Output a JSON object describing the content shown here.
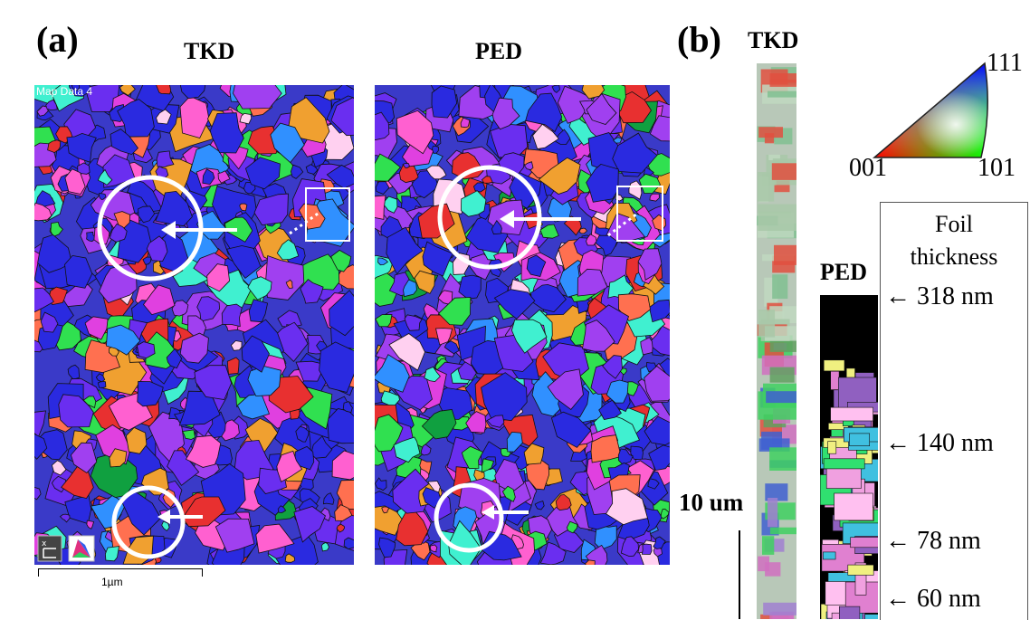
{
  "panel_a": {
    "label": "(a)",
    "tkd_title": "TKD",
    "ped_title": "PED",
    "map_data_label": "Map Data 4",
    "scale_label": "1µm"
  },
  "panel_b": {
    "label": "(b)",
    "tkd_title": "TKD",
    "ped_title": "PED",
    "scale_label": "10 um",
    "ipf": {
      "top": "111",
      "left": "001",
      "right": "101"
    },
    "foil": {
      "title_line1": "Foil",
      "title_line2": "thickness",
      "markers": [
        "318 nm",
        "140 nm",
        "78 nm",
        "60 nm"
      ]
    }
  },
  "colors": {
    "grain_palette": [
      "#2a2ae0",
      "#6a2ef0",
      "#a040f0",
      "#e040e0",
      "#ff60d0",
      "#e83030",
      "#ff7050",
      "#30e050",
      "#40f0d0",
      "#3090ff",
      "#f0a030",
      "#ffd0f0",
      "#10a040"
    ],
    "annotation": "#ffffff"
  }
}
